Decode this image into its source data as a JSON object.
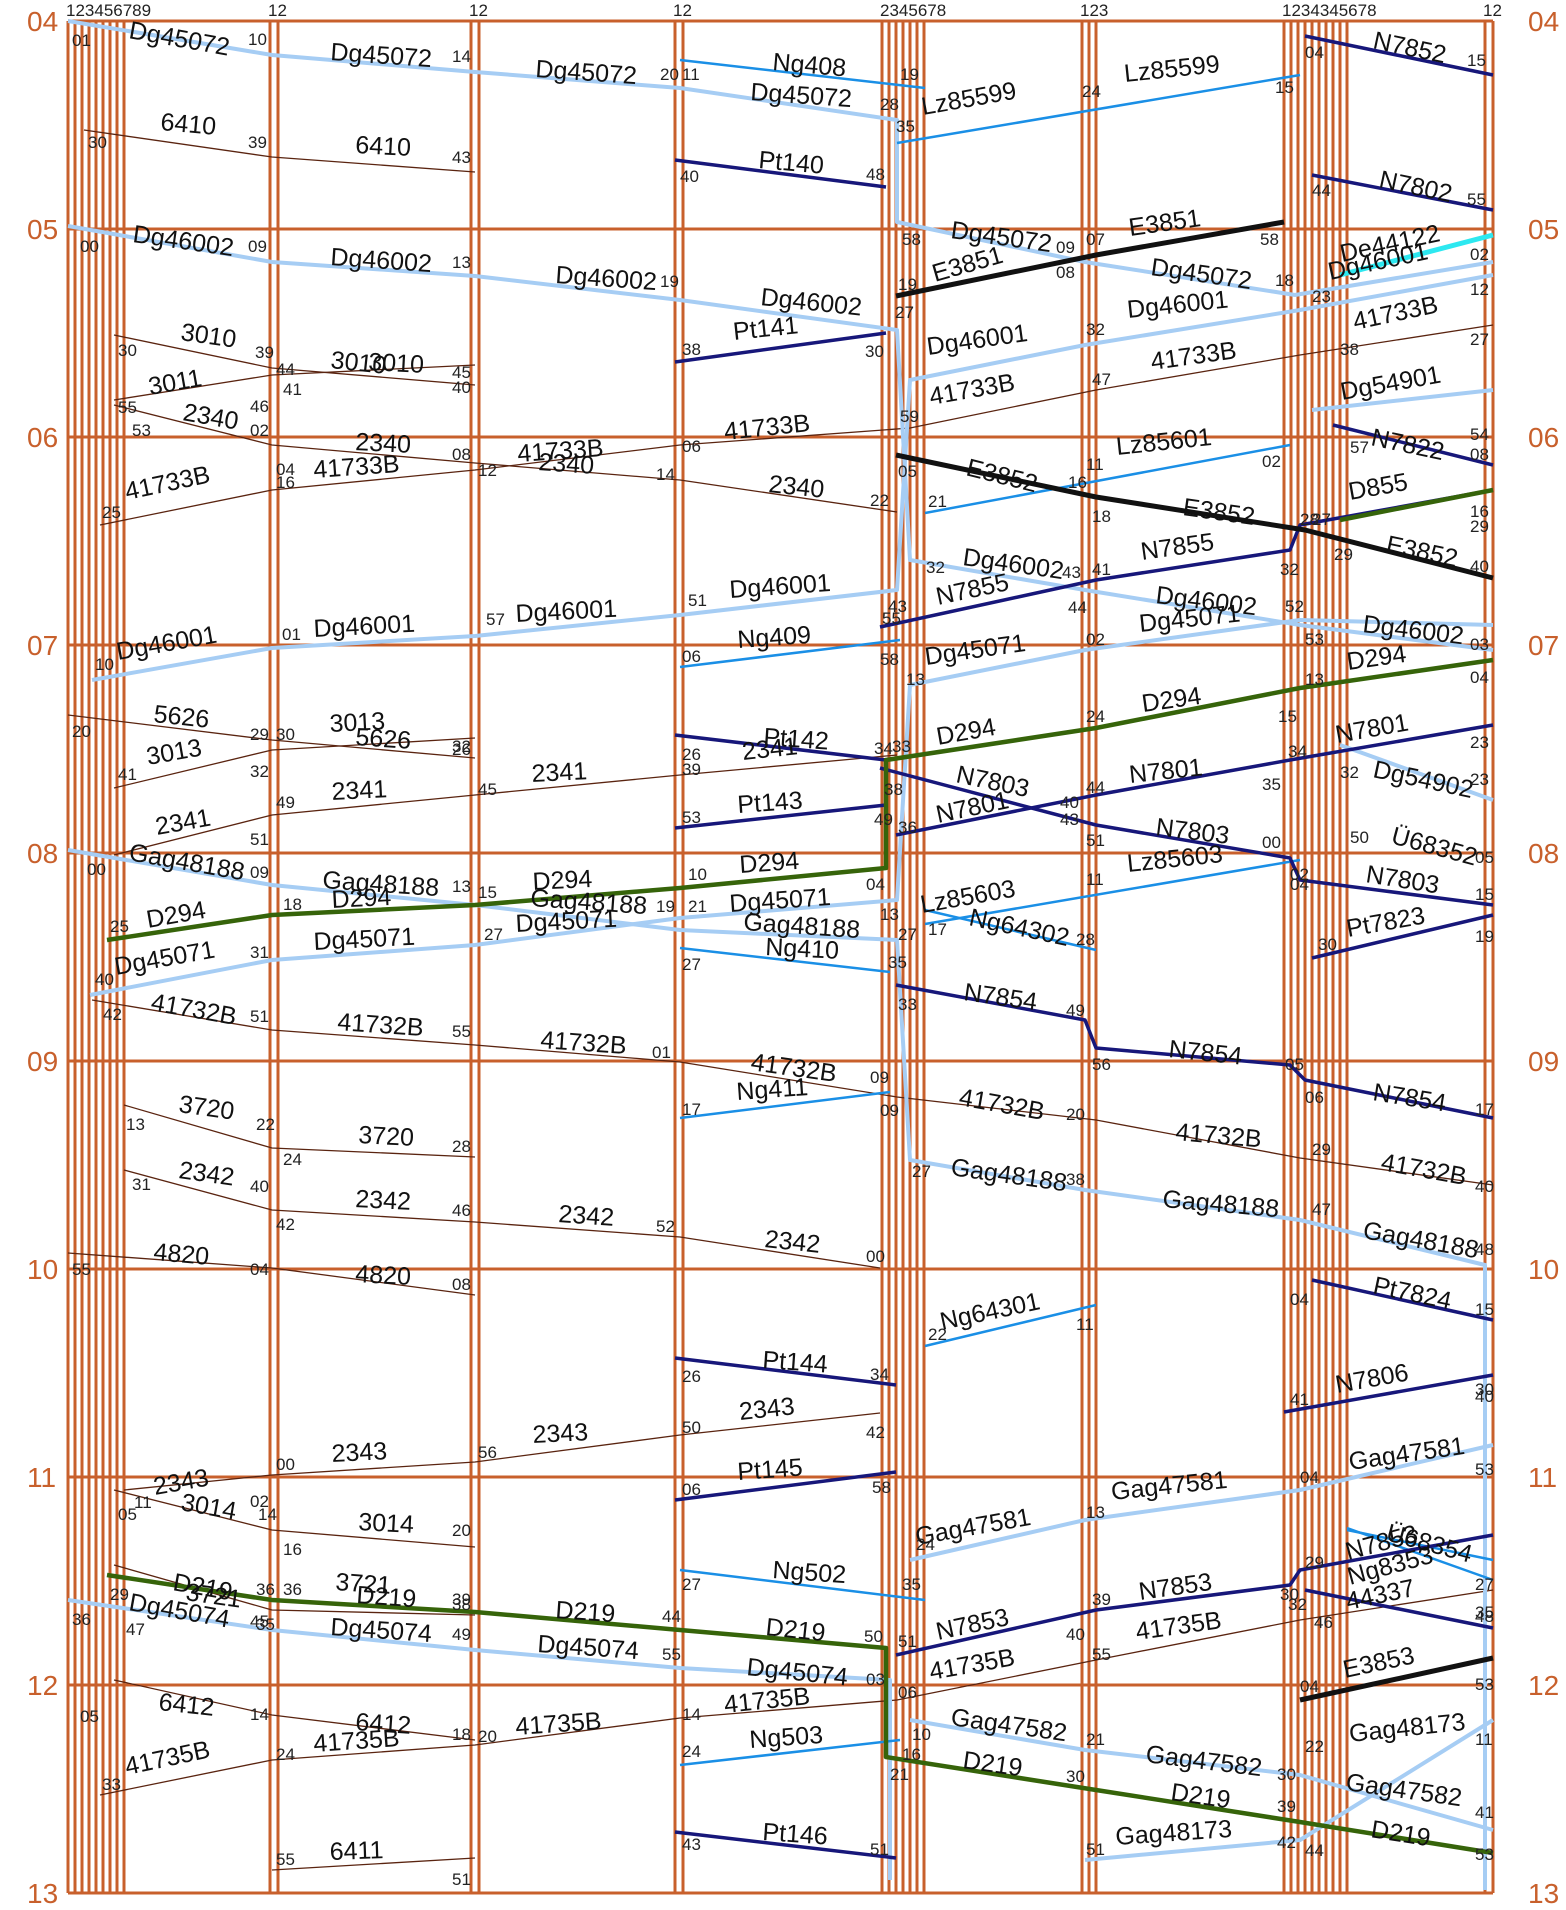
{
  "colors": {
    "grid": "#c8602c",
    "light_blue": "#a6cdf4",
    "mid_blue": "#1a8fe6",
    "navy": "#17177a",
    "green": "#36640a",
    "black": "#111111",
    "thin_brown": "#5a2410",
    "cyan": "#2de8f0"
  },
  "hours": [
    "04",
    "05",
    "06",
    "07",
    "08",
    "09",
    "10",
    "11",
    "12",
    "13"
  ],
  "track_numbers": {
    "a": "123456789",
    "b": "12",
    "c": "12",
    "d": "12",
    "e": "2345678",
    "f": "123",
    "g": "1234345678",
    "h": "12"
  },
  "trains": {
    "dg45072": "Dg45072",
    "dg46002": "Dg46002",
    "dg46001": "Dg46001",
    "dg45071": "Dg45071",
    "dg45074": "Dg45074",
    "dg54901": "Dg54901",
    "dg54902": "Dg54902",
    "gag48188": "Gag48188",
    "gag47581": "Gag47581",
    "gag47582": "Gag47582",
    "gag48173": "Gag48173",
    "ng408": "Ng408",
    "ng409": "Ng409",
    "ng410": "Ng410",
    "ng411": "Ng411",
    "ng502": "Ng502",
    "ng503": "Ng503",
    "ng64301": "Ng64301",
    "ng64302": "Ng64302",
    "ng8353": "Ng8353",
    "pt140": "Pt140",
    "pt141": "Pt141",
    "pt142": "Pt142",
    "pt143": "Pt143",
    "pt144": "Pt144",
    "pt145": "Pt145",
    "pt146": "Pt146",
    "pt7823": "Pt7823",
    "pt7824": "Pt7824",
    "lz85599": "Lz85599",
    "lz85601": "Lz85601",
    "lz85603": "Lz85603",
    "n7852": "N7852",
    "n7802": "N7802",
    "n7855": "N7855",
    "n7801": "N7801",
    "n7803": "N7803",
    "n7854": "N7854",
    "n7806": "N7806",
    "n7853": "N7853",
    "n7822": "N7822",
    "e3851": "E3851",
    "e3852": "E3852",
    "e3853": "E3853",
    "de44122": "De44122",
    "d294": "D294",
    "d219": "D219",
    "d855": "D855",
    "u68352": "Ü68352",
    "u68354": "Ü68354",
    "c41733b": "41733B",
    "c41732b": "41732B",
    "c41735b": "41735B",
    "c44337": "44337",
    "c6410": "6410",
    "c6411": "6411",
    "c6412": "6412",
    "c3010": "3010",
    "c3011": "3011",
    "c3013": "3013",
    "c3014": "3014",
    "c2340": "2340",
    "c2341": "2341",
    "c2342": "2342",
    "c2343": "2343",
    "c5626": "5626",
    "c3720": "3720",
    "c3721": "3721",
    "c4820": "4820"
  }
}
